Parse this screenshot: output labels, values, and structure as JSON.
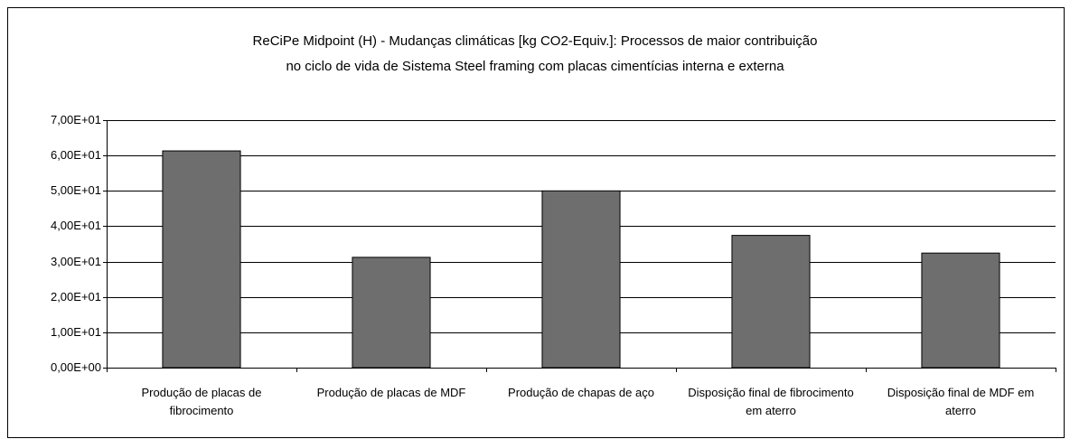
{
  "chart_data": {
    "type": "bar",
    "title": [
      "ReCiPe Midpoint (H) - Mudanças climáticas [kg CO2-Equiv.]:  Processos de maior contribuição",
      "no ciclo de vida de Sistema Steel framing com placas cimentícias interna e externa"
    ],
    "categories": [
      "Produção de placas de fibrocimento",
      "Produção de placas de MDF",
      "Produção de chapas de aço",
      "Disposição final de fibrocimento em aterro",
      "Disposição final de MDF em aterro"
    ],
    "values": [
      61.3,
      31.2,
      50.0,
      37.4,
      32.4
    ],
    "color": "#6e6e6e",
    "ylim": [
      0,
      70
    ],
    "yticks": [
      {
        "value": 0,
        "label": "0,00E+00"
      },
      {
        "value": 10,
        "label": "1,00E+01"
      },
      {
        "value": 20,
        "label": "2,00E+01"
      },
      {
        "value": 30,
        "label": "3,00E+01"
      },
      {
        "value": 40,
        "label": "4,00E+01"
      },
      {
        "value": 50,
        "label": "5,00E+01"
      },
      {
        "value": 60,
        "label": "6,00E+01"
      },
      {
        "value": 70,
        "label": "7,00E+01"
      }
    ],
    "grid": true
  }
}
